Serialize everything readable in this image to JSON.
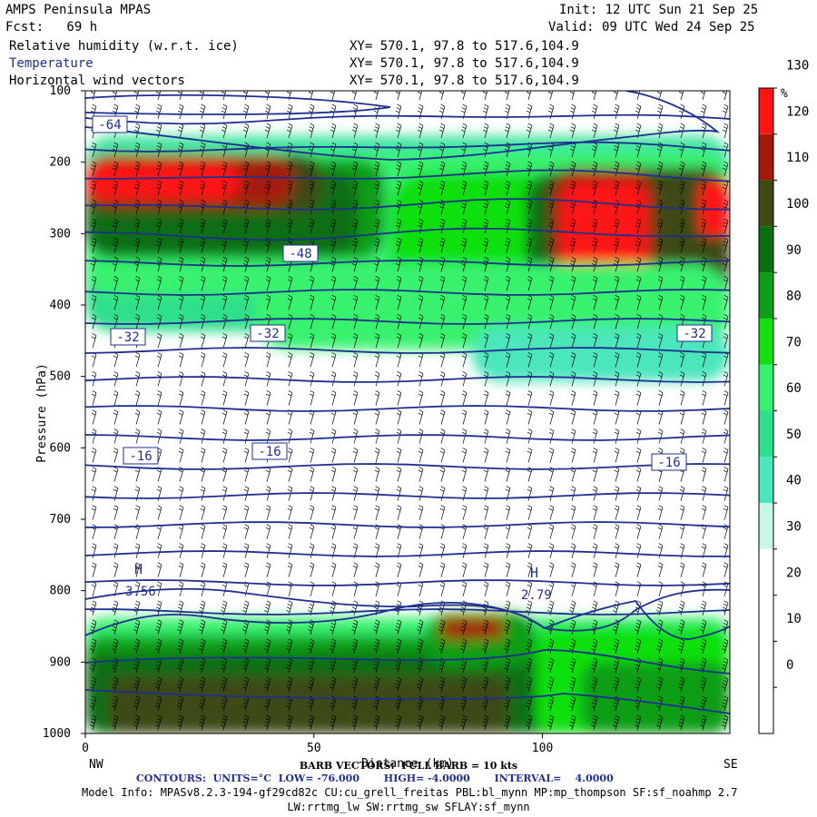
{
  "header": {
    "line1_left": "AMPS Peninsula MPAS",
    "line1_right": "Init: 12 UTC Sun 21 Sep 25",
    "line2_left": "Fcst:   69 h",
    "line2_right": "Valid: 09 UTC Wed 24 Sep 25",
    "fields": [
      {
        "label": "Relative humidity (w.r.t. ice)",
        "xy": "XY= 570.1, 97.8 to 517.6,104.9"
      },
      {
        "label": "Temperature",
        "xy": "XY= 570.1, 97.8 to 517.6,104.9"
      },
      {
        "label": "Horizontal wind vectors",
        "xy": "XY= 570.1, 97.8 to 517.6,104.9"
      }
    ]
  },
  "chart_data": {
    "type": "heatmap",
    "ylabel": "Pressure (hPa)",
    "xlabel": "Distance (km)",
    "x_end_labels": {
      "left": "NW",
      "right": "SE"
    },
    "x_ticks": [
      0,
      50,
      100
    ],
    "x_range": [
      0,
      141
    ],
    "y_ticks": [
      100,
      200,
      300,
      400,
      500,
      600,
      700,
      800,
      900,
      1000
    ],
    "y_range": [
      100,
      1000
    ],
    "y_inverted": true,
    "colorbar": {
      "unit": "%",
      "levels": [
        0,
        10,
        20,
        30,
        40,
        50,
        60,
        70,
        80,
        90,
        100,
        110,
        120,
        130
      ],
      "labels": [
        "0",
        "10",
        "20",
        "30",
        "40",
        "50",
        "60",
        "70",
        "80",
        "90",
        "100",
        "110",
        "120",
        "130"
      ],
      "colors": [
        "#ffffff",
        "#ffffff",
        "#ffffff",
        "#ffffff",
        "#c8f7ea",
        "#4be6bc",
        "#2edf8c",
        "#37f26e",
        "#10e010",
        "#0b9e18",
        "#0a6e12",
        "#3d4a12",
        "#a41a0a",
        "#ff1414"
      ]
    },
    "temperature_contour_labels": [
      {
        "text": "-64"
      },
      {
        "text": "-48"
      },
      {
        "text": "-32"
      },
      {
        "text": "-32"
      },
      {
        "text": "-32"
      },
      {
        "text": "-16"
      },
      {
        "text": "-16"
      },
      {
        "text": "-16"
      }
    ],
    "markers": [
      {
        "symbol": "H",
        "value": "3.56"
      },
      {
        "symbol": "H",
        "value": "2.79"
      }
    ]
  },
  "footer": {
    "barb": "BARB VECTORS:  FULL BARB = 10 kts",
    "contours": "CONTOURS:  UNITS=°C  LOW= -76.000       HIGH= -4.0000       INTERVAL=    4.0000",
    "model_info": "Model Info: MPASv8.2.3-194-gf29cd82c CU:cu_grell_freitas PBL:bl_mynn MP:mp_thompson SF:sf_noahmp 2.7",
    "model_info2": "LW:rrtmg_lw SW:rrtmg_sw SFLAY:sf_mynn"
  }
}
